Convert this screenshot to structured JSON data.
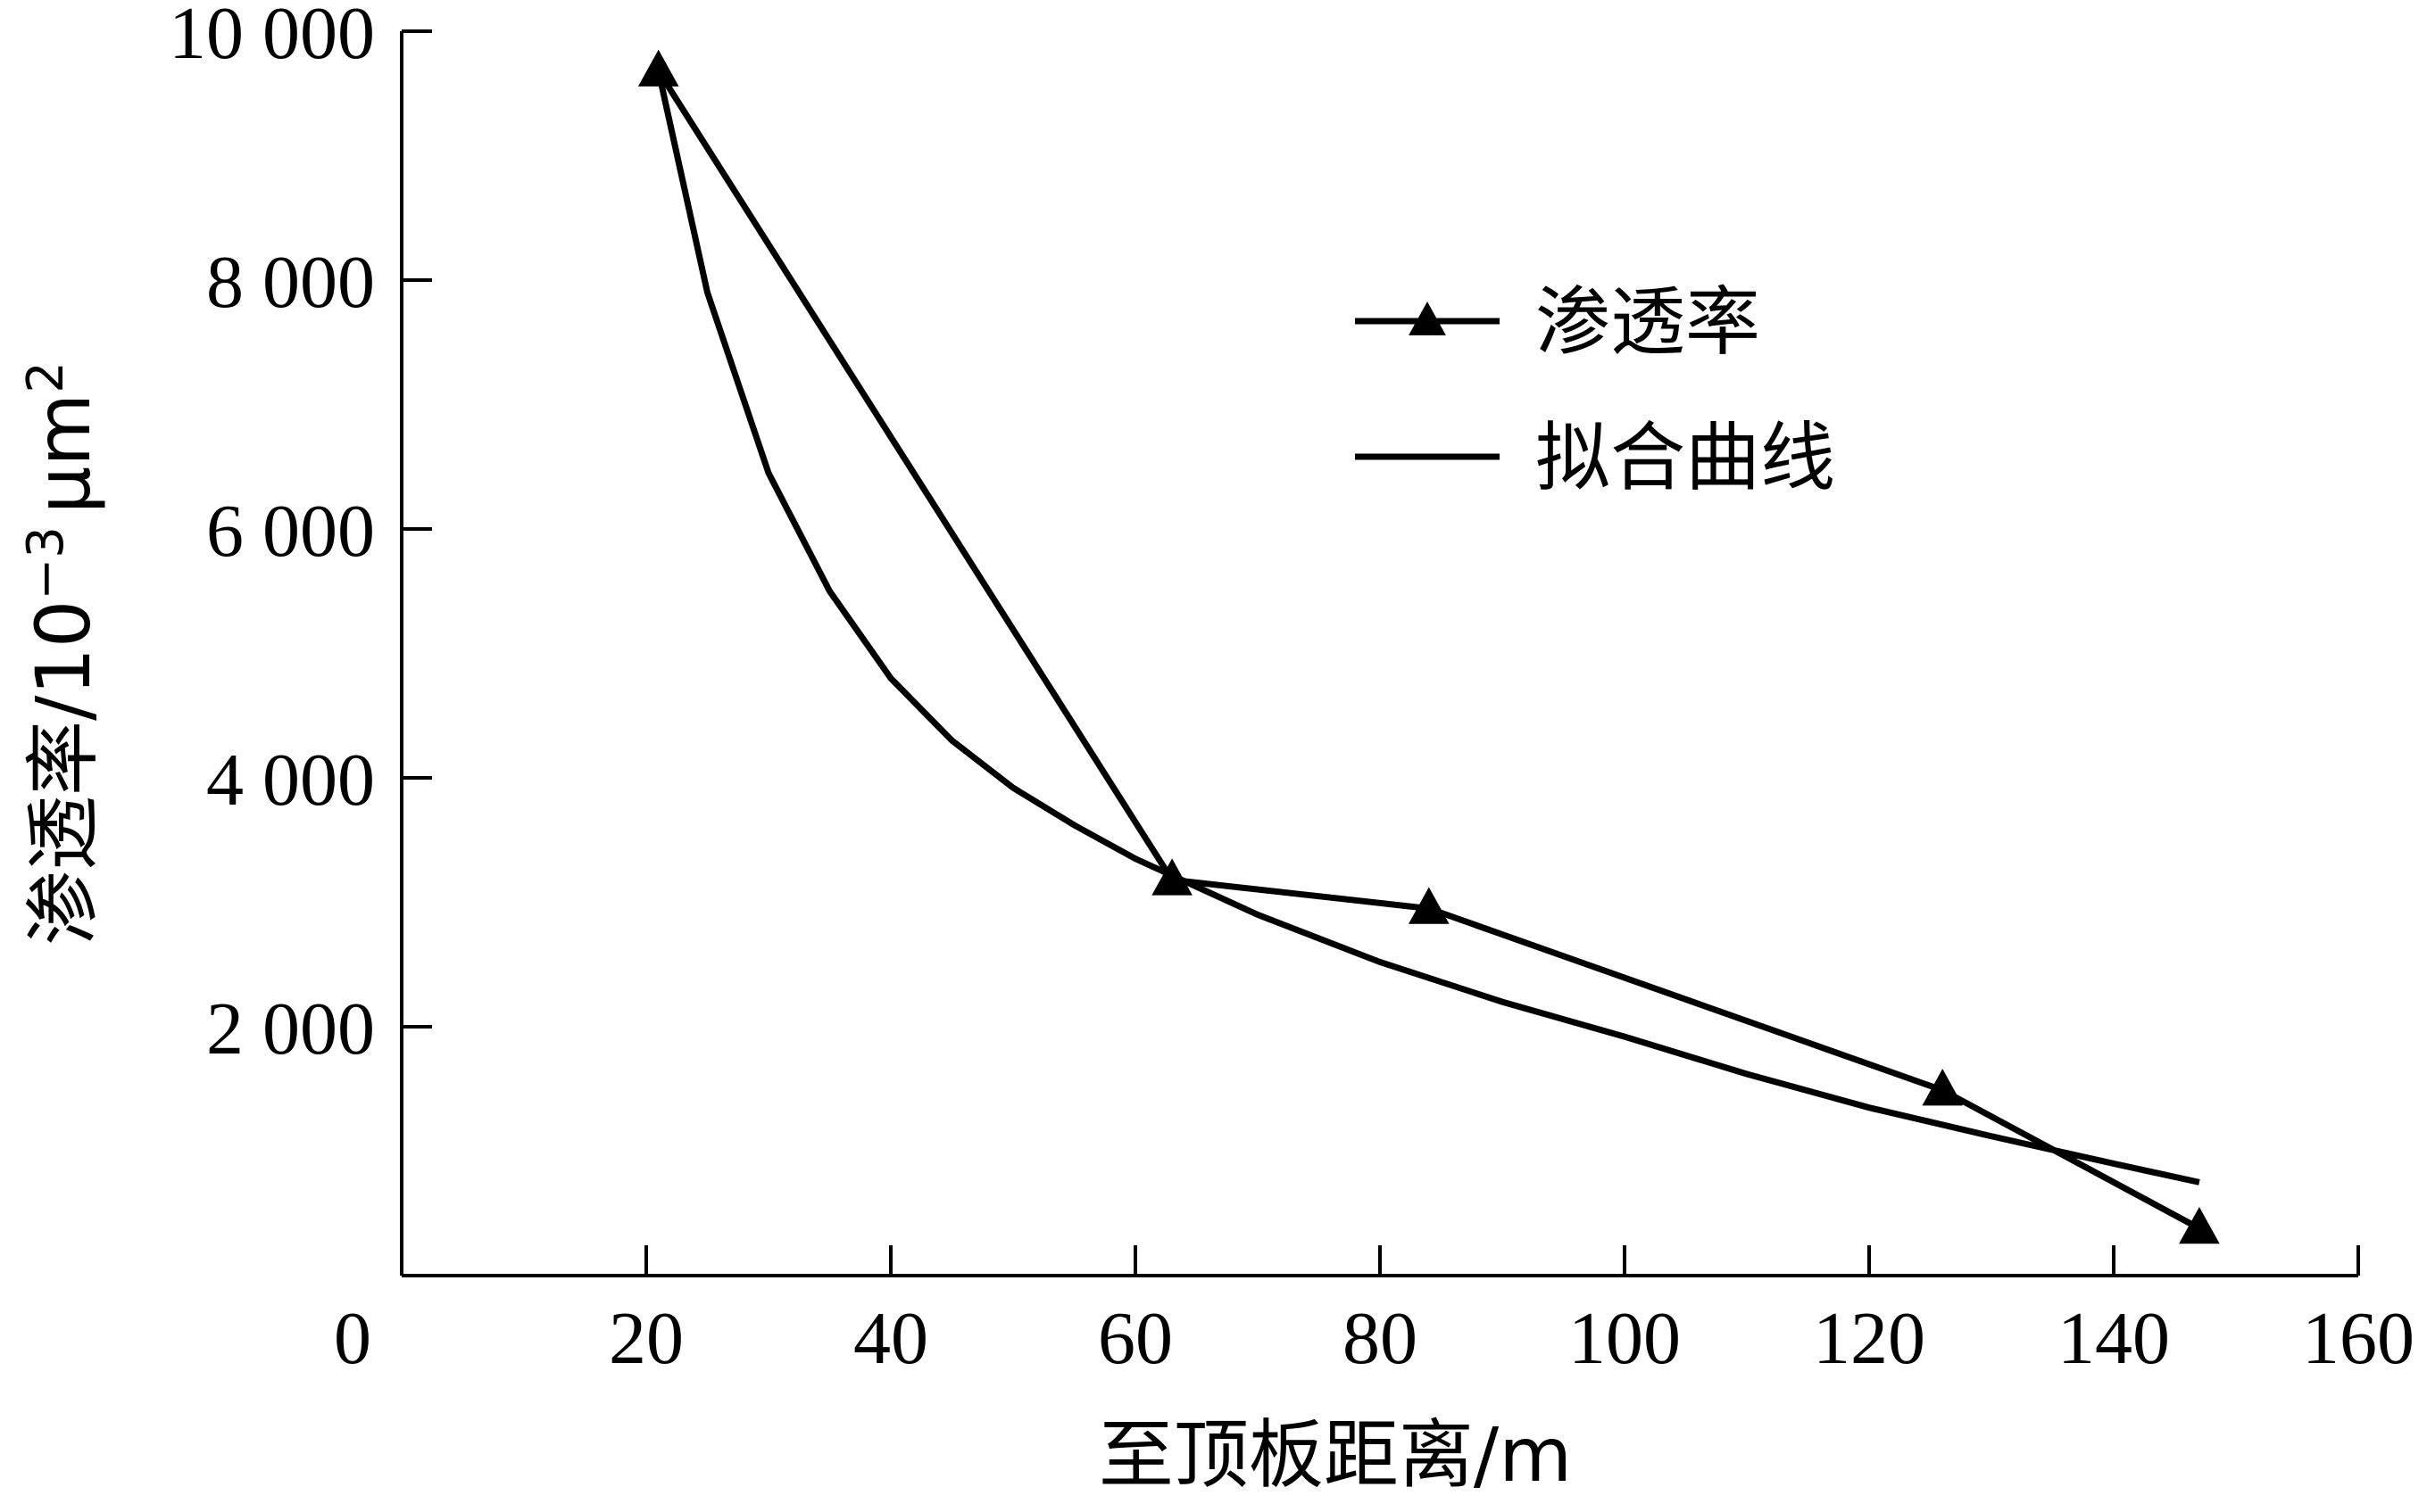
{
  "chart_data": {
    "type": "line",
    "xlabel": "至顶板距离/m",
    "ylabel": "渗透率/10",
    "ylabel_exp": "−3",
    "ylabel_unit": "μm",
    "ylabel_unit_exp": "2",
    "xlim": [
      0,
      160
    ],
    "ylim": [
      0,
      10000
    ],
    "x_ticks": [
      0,
      20,
      40,
      60,
      80,
      100,
      120,
      140,
      160
    ],
    "x_tick_labels": [
      "0",
      "20",
      "40",
      "60",
      "80",
      "100",
      "120",
      "140",
      "160"
    ],
    "y_ticks": [
      2000,
      4000,
      6000,
      8000,
      10000
    ],
    "y_tick_labels": [
      "2 000",
      "4 000",
      "6 000",
      "8 000",
      "10 000"
    ],
    "grid": false,
    "legend": "upper-right",
    "series": [
      {
        "name": "渗透率",
        "marker": "triangle",
        "x": [
          21,
          63,
          84,
          126,
          147
        ],
        "y": [
          9680,
          3180,
          2950,
          1490,
          380
        ]
      },
      {
        "name": "拟合曲线",
        "marker": "none",
        "x": [
          21,
          25,
          30,
          35,
          40,
          45,
          50,
          55,
          60,
          70,
          80,
          90,
          100,
          110,
          120,
          130,
          140,
          147
        ],
        "y": [
          9680,
          7900,
          6450,
          5500,
          4800,
          4300,
          3920,
          3620,
          3350,
          2900,
          2520,
          2200,
          1920,
          1620,
          1350,
          1120,
          900,
          750
        ]
      }
    ]
  }
}
